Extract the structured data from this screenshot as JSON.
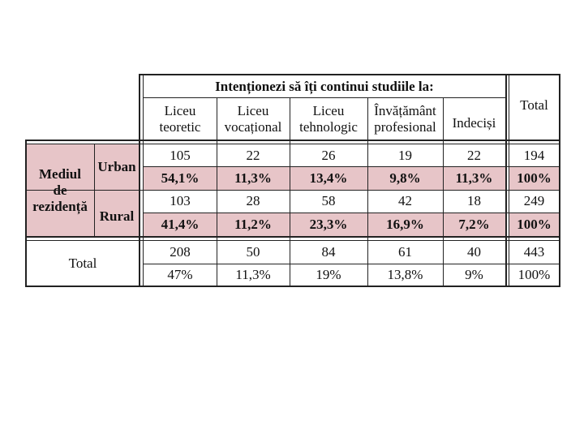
{
  "table": {
    "question": "Intenționezi să îți continui studiile la:",
    "total_header": "Total",
    "columns": [
      {
        "line1": "Liceu",
        "line2": "teoretic"
      },
      {
        "line1": "Liceu",
        "line2": "vocațional"
      },
      {
        "line1": "Liceu",
        "line2": "tehnologic"
      },
      {
        "line1": "Învățământ",
        "line2": "profesional"
      },
      {
        "line1": "Indeciși",
        "line2": ""
      }
    ],
    "group_label": {
      "line1": "Mediul",
      "line2": "de",
      "line3": "rezidență"
    },
    "rows": [
      {
        "label": "Urban",
        "counts": [
          "105",
          "22",
          "26",
          "19",
          "22"
        ],
        "count_total": "194",
        "percents": [
          "54,1%",
          "11,3%",
          "13,4%",
          "9,8%",
          "11,3%"
        ],
        "percent_total": "100%"
      },
      {
        "label": "Rural",
        "counts": [
          "103",
          "28",
          "58",
          "42",
          "18"
        ],
        "count_total": "249",
        "percents": [
          "41,4%",
          "11,2%",
          "23,3%",
          "16,9%",
          "7,2%"
        ],
        "percent_total": "100%"
      }
    ],
    "total_row": {
      "label": "Total",
      "counts": [
        "208",
        "50",
        "84",
        "61",
        "40"
      ],
      "count_total": "443",
      "percents": [
        "47%",
        "11,3%",
        "19%",
        "13,8%",
        "9%"
      ],
      "percent_total": "100%"
    }
  }
}
